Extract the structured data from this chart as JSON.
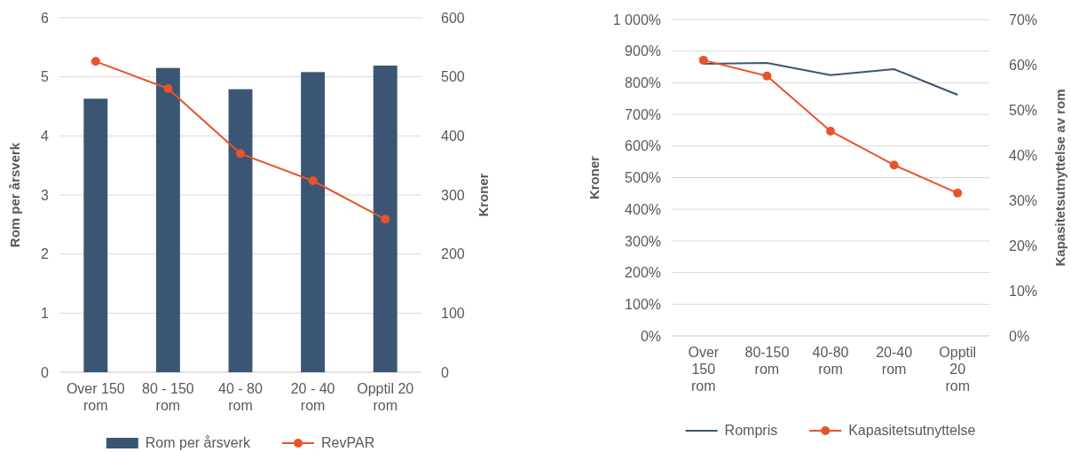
{
  "chart_data": [
    {
      "type": "bar",
      "categories": [
        "Over 150 rom",
        "80 - 150 rom",
        "40 - 80 rom",
        "20 - 40 rom",
        "Opptil 20 rom"
      ],
      "ylabel": "Rom per årsverk",
      "y2label": "Kroner",
      "ylim": [
        0,
        6
      ],
      "yticks": [
        0,
        1,
        2,
        3,
        4,
        5,
        6
      ],
      "y2lim": [
        0,
        600
      ],
      "y2ticks": [
        0,
        100,
        200,
        300,
        400,
        500,
        600
      ],
      "grid": "y",
      "legend": "bottom",
      "series": [
        {
          "name": "Rom per årsverk",
          "color": "#3b5674",
          "values": [
            4.63,
            5.15,
            4.79,
            5.08,
            5.19
          ]
        },
        {
          "name": "RevPAR",
          "type": "line",
          "axis": "y2",
          "color": "#e8542a",
          "marker": "circle",
          "values": [
            526,
            480,
            370,
            324,
            259
          ]
        }
      ]
    },
    {
      "type": "line",
      "categories": [
        "Over 150 rom",
        "80-150 rom",
        "40-80 rom",
        "20-40 rom",
        "Opptil 20 rom"
      ],
      "ylabel": "Kroner",
      "y2label": "Kapasitetsutnyttelse av rom",
      "ylim": [
        0,
        1000
      ],
      "yticks": [
        {
          "value": 0,
          "label": "0%"
        },
        {
          "value": 100,
          "label": "100%"
        },
        {
          "value": 200,
          "label": "200%"
        },
        {
          "value": 300,
          "label": "300%"
        },
        {
          "value": 400,
          "label": "400%"
        },
        {
          "value": 500,
          "label": "500%"
        },
        {
          "value": 600,
          "label": "600%"
        },
        {
          "value": 700,
          "label": "700%"
        },
        {
          "value": 800,
          "label": "800%"
        },
        {
          "value": 900,
          "label": "900%"
        },
        {
          "value": 1000,
          "label": "1 000%"
        }
      ],
      "y2lim": [
        0,
        70
      ],
      "y2ticks": [
        {
          "value": 0,
          "label": "0%"
        },
        {
          "value": 10,
          "label": "10%"
        },
        {
          "value": 20,
          "label": "20%"
        },
        {
          "value": 30,
          "label": "30%"
        },
        {
          "value": 40,
          "label": "40%"
        },
        {
          "value": 50,
          "label": "50%"
        },
        {
          "value": 60,
          "label": "60%"
        },
        {
          "value": 70,
          "label": "70%"
        }
      ],
      "grid": "y",
      "legend": "bottom",
      "series": [
        {
          "name": "Rompris",
          "color": "#3b5674",
          "marker": "none",
          "values": [
            860,
            863,
            824,
            843,
            762
          ]
        },
        {
          "name": "Kapasitetsutnyttelse",
          "axis": "y2",
          "color": "#e8542a",
          "marker": "circle",
          "values": [
            61,
            57.5,
            45.3,
            37.8,
            31.6
          ]
        }
      ]
    }
  ]
}
